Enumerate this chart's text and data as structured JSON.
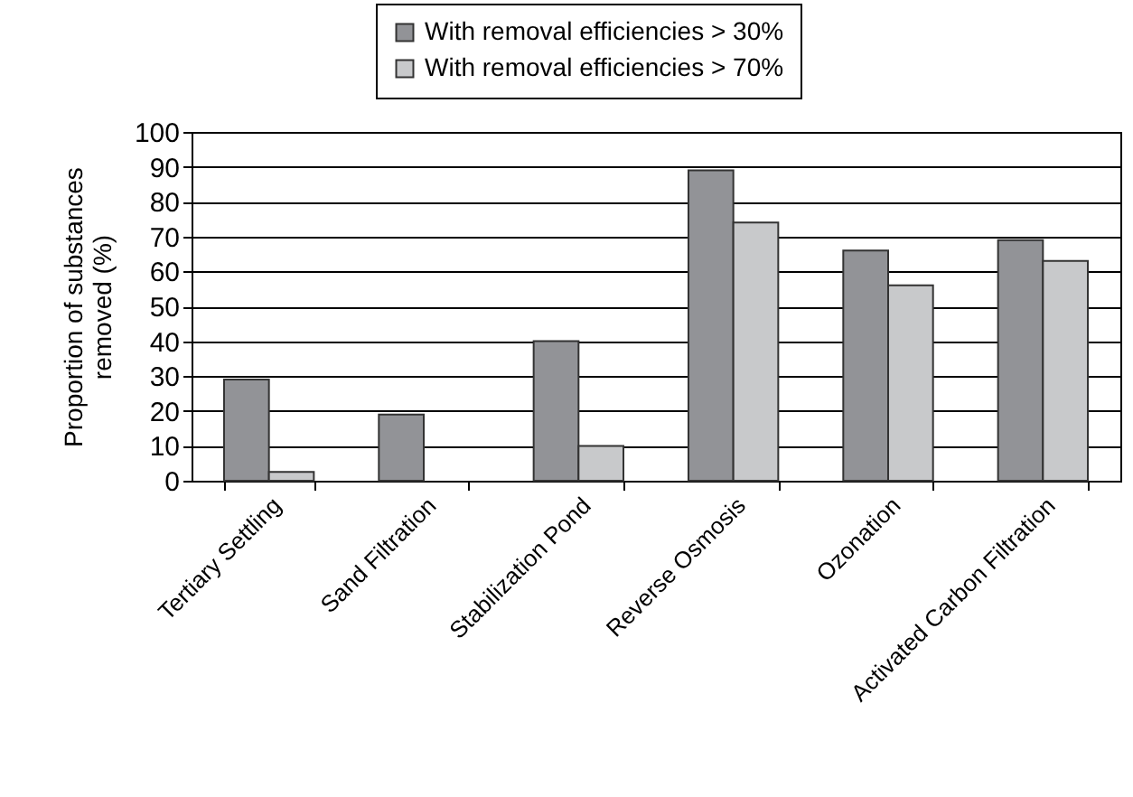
{
  "chart_data": {
    "type": "bar",
    "ylabel": "Proportion of substances removed (%)",
    "categories": [
      "Tertiary Settling",
      "Sand Filtration",
      "Stabilization Pond",
      "Reverse Osmosis",
      "Ozonation",
      "Activated Carbon Filtration"
    ],
    "series": [
      {
        "name": "With removal efficiencies > 30%",
        "color": "#929397",
        "values": [
          29,
          19,
          40,
          89,
          66,
          69
        ]
      },
      {
        "name": "With removal efficiencies > 70%",
        "color": "#c8c9cb",
        "values": [
          2.5,
          null,
          10,
          74,
          56,
          63
        ]
      }
    ],
    "ylim": [
      0,
      100
    ],
    "yticks": [
      0,
      10,
      20,
      30,
      40,
      50,
      60,
      70,
      80,
      90,
      100
    ],
    "grid": "y",
    "legend": "top"
  }
}
